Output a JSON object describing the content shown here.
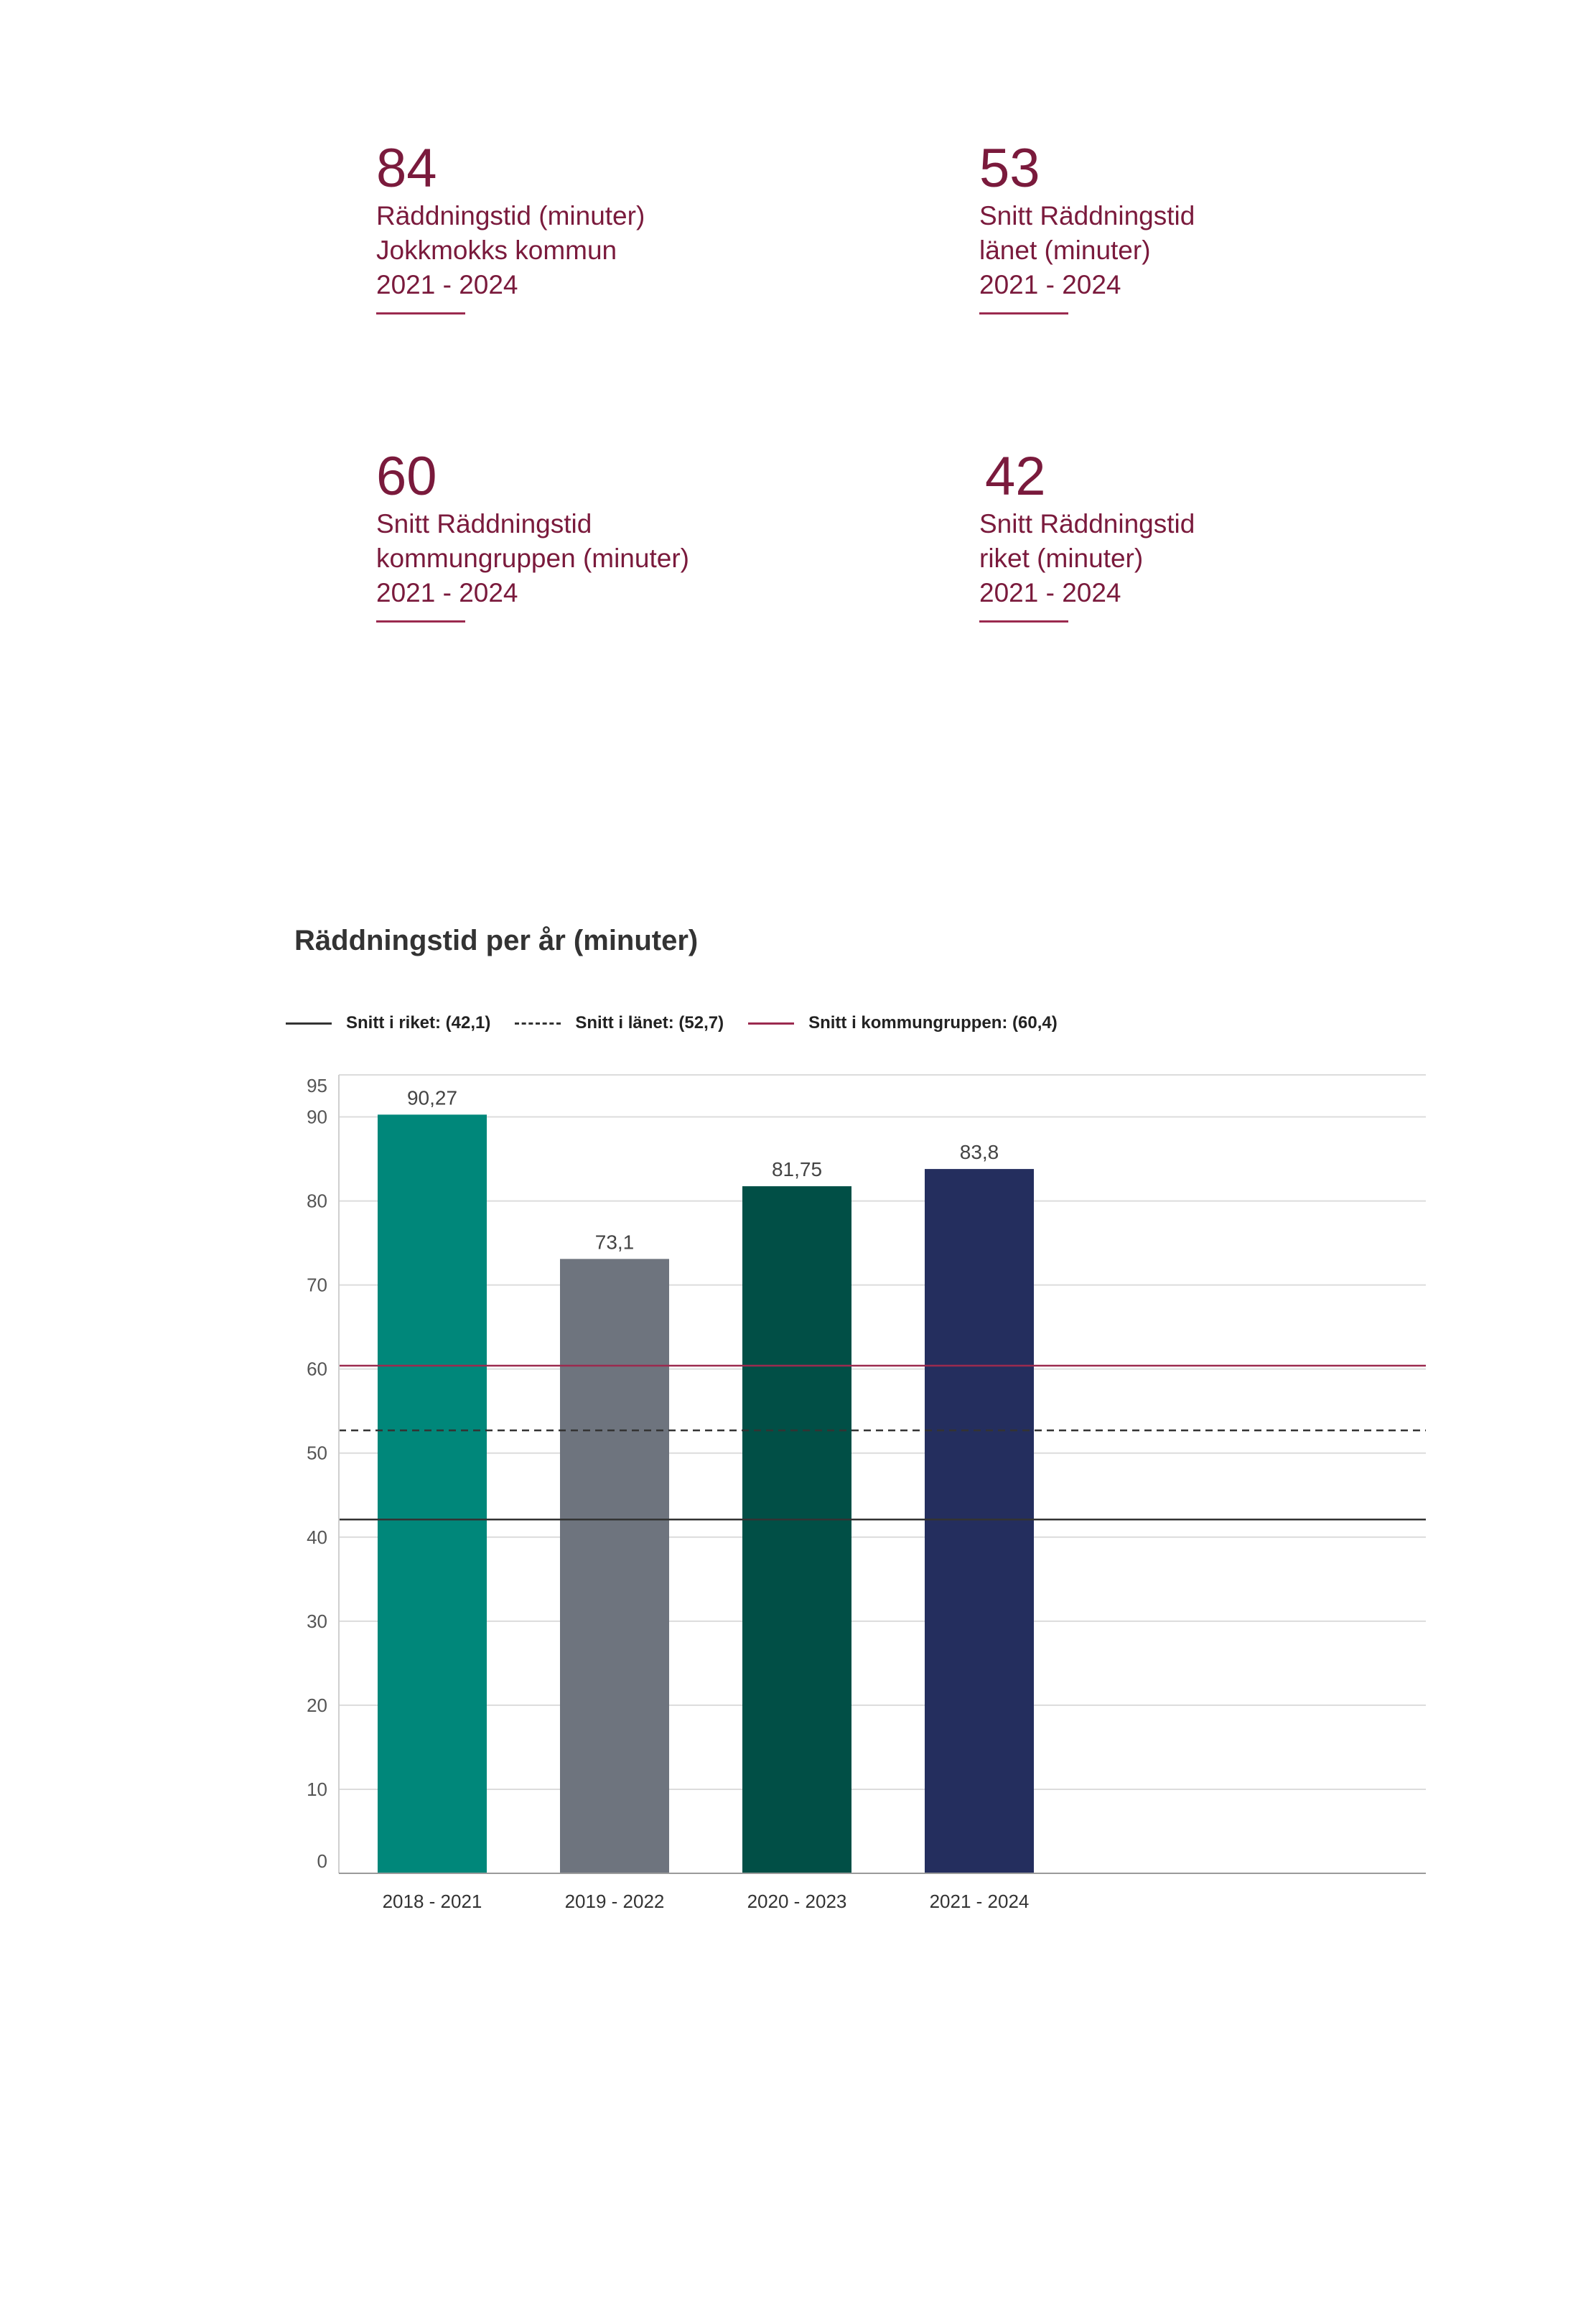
{
  "stats": [
    {
      "value": "84",
      "lines": [
        "Räddningstid (minuter)",
        "Jokkmokks kommun",
        "2021 - 2024"
      ]
    },
    {
      "value": "53",
      "lines": [
        "Snitt Räddningstid",
        "länet (minuter)",
        "2021 - 2024"
      ]
    },
    {
      "value": "60",
      "lines": [
        "Snitt Räddningstid",
        "kommungruppen (minuter)",
        "2021 - 2024"
      ]
    },
    {
      "value": "42",
      "lines": [
        "Snitt Räddningstid",
        "riket (minuter)",
        "2021 - 2024"
      ]
    }
  ],
  "colors": {
    "accent": "#7a1a3c",
    "kommungruppen_line": "#9b2a4f",
    "riket_line": "#333333",
    "lanet_line": "#333333",
    "bars": [
      "#00877a",
      "#6e747e",
      "#014f46",
      "#242e5e"
    ]
  },
  "legend": {
    "riket": "Snitt i riket: (42,1)",
    "lanet": "Snitt i länet: (52,7)",
    "kommungruppen": "Snitt i kommungruppen: (60,4)"
  },
  "chart_data": {
    "type": "bar",
    "title": "Räddningstid per år (minuter)",
    "categories": [
      "2018 - 2021",
      "2019 - 2022",
      "2020 - 2023",
      "2021 - 2024"
    ],
    "values": [
      90.27,
      73.1,
      81.75,
      83.8
    ],
    "value_labels": [
      "90,27",
      "73,1",
      "81,75",
      "83,8"
    ],
    "xlabel": "",
    "ylabel": "",
    "ylim": [
      0,
      95
    ],
    "yticks": [
      0,
      10,
      20,
      30,
      40,
      50,
      60,
      70,
      80,
      90,
      95
    ],
    "grid": true,
    "legend_position": "top-left",
    "reference_lines": [
      {
        "name": "Snitt i riket",
        "value": 42.1,
        "style": "solid"
      },
      {
        "name": "Snitt i länet",
        "value": 52.7,
        "style": "dashed"
      },
      {
        "name": "Snitt i kommungruppen",
        "value": 60.4,
        "style": "solid-accent"
      }
    ]
  }
}
